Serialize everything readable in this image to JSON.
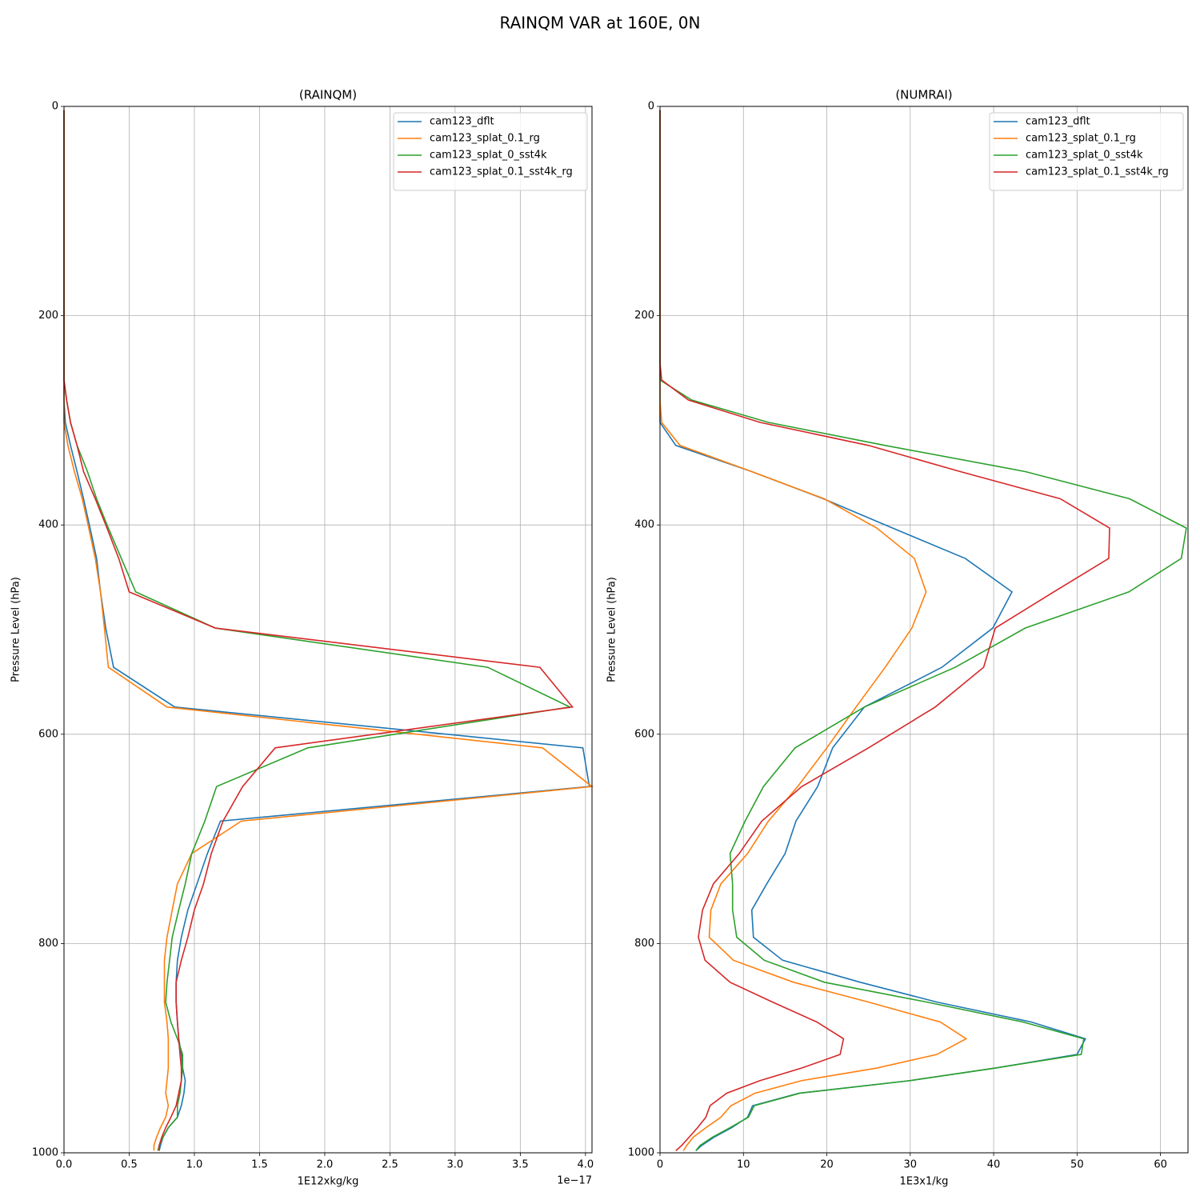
{
  "title": "RAINQM VAR at 160E, 0N",
  "chart_data": [
    {
      "type": "line",
      "title": "(RAINQM)",
      "x_label": "1E12xkg/kg",
      "y_label": "Pressure Level (hPa)",
      "x_offset_label": "1e−17",
      "xlim": [
        0,
        4.05
      ],
      "ylim": [
        1000,
        0
      ],
      "xticks": [
        {
          "value": 0,
          "label": "0.0"
        },
        0.5,
        {
          "value": 1,
          "label": "1.0"
        },
        1.5,
        {
          "value": 2,
          "label": "2.0"
        },
        2.5,
        {
          "value": 3,
          "label": "3.0"
        },
        3.5,
        {
          "value": 4,
          "label": "4.0"
        }
      ],
      "yticks": [
        0,
        200,
        400,
        600,
        800,
        1000
      ],
      "grid": true,
      "legend": "upper right",
      "y": [
        3.6,
        245,
        261.5,
        280.6,
        302,
        324,
        349,
        375,
        403,
        432,
        464,
        498.5,
        536,
        574,
        613,
        650,
        683,
        714,
        743,
        768,
        794,
        816,
        837,
        856,
        875,
        891,
        906,
        919,
        931,
        943,
        955,
        966,
        976,
        985,
        993,
        998
      ],
      "series": [
        {
          "name": "cam123_dflt",
          "color": "#1f77b4",
          "values": [
            0,
            0,
            0,
            0,
            0.01,
            0.05,
            0.1,
            0.15,
            0.2,
            0.25,
            0.28,
            0.32,
            0.38,
            0.85,
            3.98,
            4.03,
            1.2,
            1.1,
            1.02,
            0.95,
            0.9,
            0.87,
            0.86,
            0.86,
            0.87,
            0.88,
            0.9,
            0.91,
            0.93,
            0.92,
            0.9,
            0.87,
            0.8,
            0.76,
            0.74,
            0.73
          ]
        },
        {
          "name": "cam123_splat_0.1_rg",
          "color": "#ff7f0e",
          "values": [
            0,
            0,
            0,
            0,
            0,
            0.03,
            0.08,
            0.14,
            0.19,
            0.24,
            0.28,
            0.31,
            0.34,
            0.79,
            3.67,
            4.05,
            1.36,
            0.98,
            0.87,
            0.83,
            0.79,
            0.77,
            0.77,
            0.77,
            0.79,
            0.8,
            0.8,
            0.8,
            0.79,
            0.78,
            0.8,
            0.78,
            0.74,
            0.71,
            0.69,
            0.69
          ]
        },
        {
          "name": "cam123_splat_0_sst4k",
          "color": "#2ca02c",
          "values": [
            0,
            0,
            0,
            0.02,
            0.05,
            0.1,
            0.18,
            0.25,
            0.34,
            0.44,
            0.55,
            1.16,
            3.25,
            3.88,
            1.87,
            1.17,
            1.08,
            0.98,
            0.93,
            0.88,
            0.83,
            0.81,
            0.79,
            0.78,
            0.82,
            0.87,
            0.91,
            0.91,
            0.9,
            0.89,
            0.87,
            0.87,
            0.8,
            0.76,
            0.73,
            0.72
          ]
        },
        {
          "name": "cam123_splat_0.1_sst4k_rg",
          "color": "#d62728",
          "values": [
            0,
            0,
            0,
            0.02,
            0.05,
            0.1,
            0.15,
            0.24,
            0.33,
            0.42,
            0.5,
            1.16,
            3.65,
            3.9,
            1.62,
            1.37,
            1.22,
            1.13,
            1.07,
            1.0,
            0.95,
            0.9,
            0.86,
            0.86,
            0.87,
            0.88,
            0.89,
            0.9,
            0.9,
            0.88,
            0.86,
            0.82,
            0.78,
            0.75,
            0.73,
            0.73
          ]
        }
      ]
    },
    {
      "type": "line",
      "title": "(NUMRAI)",
      "x_label": "1E3x1/kg",
      "y_label": "Pressure Level (hPa)",
      "xlim": [
        0,
        63.3
      ],
      "ylim": [
        1000,
        0
      ],
      "xticks": [
        0,
        10,
        20,
        30,
        40,
        50,
        60
      ],
      "yticks": [
        0,
        200,
        400,
        600,
        800,
        1000
      ],
      "grid": true,
      "legend": "upper right",
      "y": [
        3.6,
        245,
        261.5,
        280.6,
        302,
        324,
        349,
        375,
        403,
        432,
        464,
        498.5,
        536,
        574,
        613,
        650,
        683,
        714,
        743,
        768,
        794,
        816,
        837,
        856,
        875,
        891,
        906,
        919,
        931,
        943,
        955,
        966,
        976,
        985,
        993,
        998
      ],
      "series": [
        {
          "name": "cam123_dflt",
          "color": "#1f77b4",
          "values": [
            0,
            0,
            0,
            0,
            0,
            1.9,
            11,
            19.6,
            27.9,
            36.6,
            42.2,
            39.9,
            33.8,
            24.5,
            20.7,
            18.9,
            16.3,
            15,
            12.8,
            11,
            11.2,
            14.7,
            24,
            33.2,
            44.5,
            51,
            50,
            40.2,
            30,
            16.7,
            11.1,
            10.5,
            8.6,
            6.5,
            5,
            4.3
          ]
        },
        {
          "name": "cam123_splat_0.1_rg",
          "color": "#ff7f0e",
          "values": [
            0,
            0,
            0,
            0,
            0.2,
            2.4,
            11,
            19.7,
            26,
            30.5,
            31.9,
            30.2,
            27,
            23.5,
            20,
            16.5,
            13,
            10.5,
            7.3,
            6.1,
            5.9,
            8.8,
            16,
            25,
            33.6,
            36.7,
            33.2,
            26,
            17,
            11.4,
            8.5,
            7.3,
            5.5,
            4,
            3.2,
            2.8
          ]
        },
        {
          "name": "cam123_splat_0_sst4k",
          "color": "#2ca02c",
          "values": [
            0,
            0,
            0,
            3.8,
            13,
            27,
            43.8,
            56.3,
            63.1,
            62.5,
            56.2,
            43.8,
            35.4,
            24.5,
            16.2,
            12.4,
            10.2,
            8.4,
            8.7,
            8.7,
            9.2,
            12.5,
            19.7,
            32,
            43.5,
            50.8,
            50.5,
            40.2,
            30,
            16.8,
            11.3,
            10.6,
            8.4,
            6.3,
            4.8,
            4.3
          ]
        },
        {
          "name": "cam123_splat_0.1_sst4k_rg",
          "color": "#d62728",
          "values": [
            0,
            0,
            0.2,
            3.4,
            12,
            25,
            36,
            48,
            53.9,
            53.8,
            47.2,
            40.2,
            38.8,
            33,
            25,
            17,
            12.2,
            9.5,
            6.4,
            5.1,
            4.6,
            5.4,
            8.4,
            13.5,
            18.8,
            22,
            21.6,
            17,
            12,
            8,
            6,
            5.5,
            4.5,
            3.5,
            2.6,
            1.9
          ]
        }
      ]
    }
  ]
}
